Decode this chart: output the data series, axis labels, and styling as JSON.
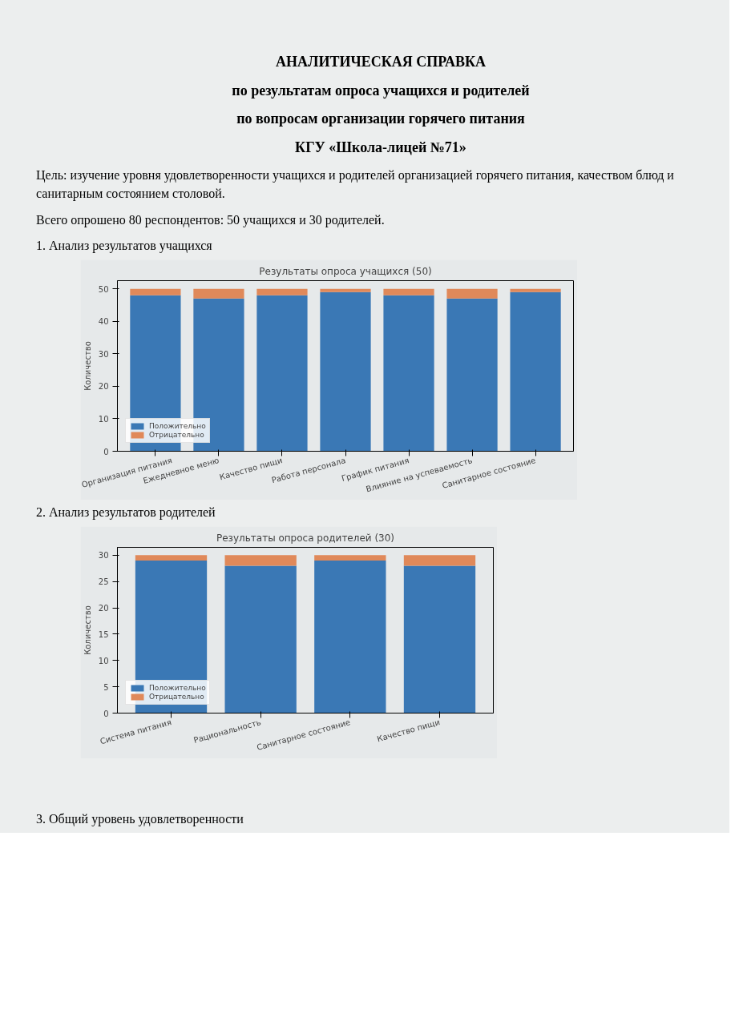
{
  "chart_data": [
    {
      "type": "bar",
      "title": "Результаты опроса учащихся (50)",
      "ylabel": "Количество",
      "annotations": [
        "АНАЛИТИЧЕСКАЯ СПРАВКА",
        "по результатам опроса учащихся и родителей",
        "по вопросам организации горячего питания",
        "КГУ «Школа-лицей №71»",
        "Цель: изучение уровня удовлетворенности учащихся и родителей организацией горячего питания, качеством блюд и санитарным состоянием столовой.",
        "Всего опрошено 80 респондентов: 50 учащихся и 30 родителей.",
        "1. Анализ результатов учащихся"
      ],
      "categories": [
        "Организация питания",
        "Ежедневное меню",
        "Качество пищи",
        "Работа персонала",
        "График питания",
        "Влияние на успеваемость",
        "Санитарное состояние"
      ],
      "series": [
        {
          "name": "Положительно",
          "color": "#3a78b5",
          "values": [
            48,
            47,
            48,
            49,
            48,
            47,
            49
          ]
        },
        {
          "name": "Отрицательно",
          "color": "#e0895a",
          "values": [
            2,
            3,
            2,
            1,
            2,
            3,
            1
          ]
        }
      ],
      "stacked": true,
      "ylim": [
        0,
        52.5
      ],
      "yticks": [
        0,
        10,
        20,
        30,
        40,
        50
      ],
      "grid": false,
      "legend": "bottom left"
    },
    {
      "type": "bar",
      "title": "Результаты опроса родителей (30)",
      "ylabel": "Количество",
      "annotations": [
        "2. Анализ результатов родителей",
        "3. Общий уровень удовлетворенности"
      ],
      "categories": [
        "Система питания",
        "Рациональность",
        "Санитарное состояние",
        "Качество пищи"
      ],
      "series": [
        {
          "name": "Положительно",
          "color": "#3a78b5",
          "values": [
            29,
            28,
            29,
            28
          ]
        },
        {
          "name": "Отрицательно",
          "color": "#e0895a",
          "values": [
            1,
            2,
            1,
            2
          ]
        }
      ],
      "stacked": true,
      "ylim": [
        0,
        31.5
      ],
      "yticks": [
        0,
        5,
        10,
        15,
        20,
        25,
        30
      ],
      "grid": false,
      "legend": "bottom left"
    }
  ]
}
